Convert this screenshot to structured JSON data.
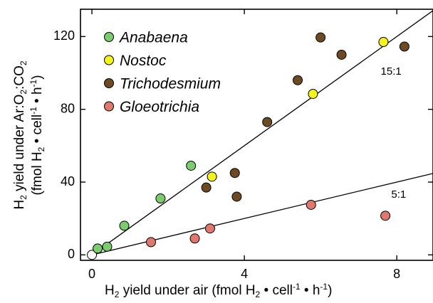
{
  "chart_data": {
    "type": "scatter",
    "ylabel": {
      "line1": {
        "p1": "H",
        "s1": "2",
        "p2": " yield under  Ar:O",
        "s2": "2",
        "p3": ":CO",
        "s3": "2"
      },
      "line2": {
        "p1": "(fmol H",
        "s1": "2",
        "p2": " • cell",
        "s2": "-1",
        "p3": " • h",
        "s3": "-1",
        "p4": ")"
      }
    },
    "xlabel": {
      "p1": "H",
      "s1": "2",
      "p2": " yield under air (fmol H",
      "s2": "2",
      "p3": " • cell",
      "s3": "-1",
      "p4": " • h",
      "s4": "-1",
      "p5": ")"
    },
    "xlim": [
      -0.3,
      8.95
    ],
    "ylim": [
      -3,
      135
    ],
    "x_ticks": [
      0,
      4,
      8
    ],
    "y_ticks": [
      0,
      40,
      80,
      120
    ],
    "grid": false,
    "legend_position": "top-left",
    "series": [
      {
        "name": "Anabaena",
        "color": "#7ccc6e",
        "points": [
          [
            0.15,
            3.5
          ],
          [
            0.4,
            4.5
          ],
          [
            0.85,
            16
          ],
          [
            1.8,
            31
          ],
          [
            2.6,
            49
          ]
        ]
      },
      {
        "name": "Nostoc",
        "color": "#f4f41c",
        "points": [
          [
            3.15,
            43
          ],
          [
            5.8,
            88.5
          ],
          [
            7.65,
            117
          ]
        ]
      },
      {
        "name": "Trichodesmium",
        "color": "#6e4a22",
        "points": [
          [
            3.0,
            37
          ],
          [
            3.75,
            45
          ],
          [
            3.8,
            32
          ],
          [
            4.6,
            73
          ],
          [
            5.4,
            96
          ],
          [
            6.0,
            119.5
          ],
          [
            6.55,
            110
          ],
          [
            8.2,
            114.5
          ]
        ]
      },
      {
        "name": "Gloeotrichia",
        "color": "#e0786e",
        "points": [
          [
            1.55,
            7
          ],
          [
            2.7,
            9
          ],
          [
            3.1,
            14.5
          ],
          [
            5.75,
            27.5
          ],
          [
            7.7,
            21.5
          ]
        ]
      }
    ],
    "origin_point": {
      "x": 0,
      "y": 0,
      "fill": "#ffffff"
    },
    "fit_lines": [
      {
        "label": "15:1",
        "slope": 15,
        "label_x": 7.85,
        "label_y": 100.5
      },
      {
        "label": "5:1",
        "slope": 5,
        "label_x": 8.05,
        "label_y": 33
      }
    ]
  }
}
